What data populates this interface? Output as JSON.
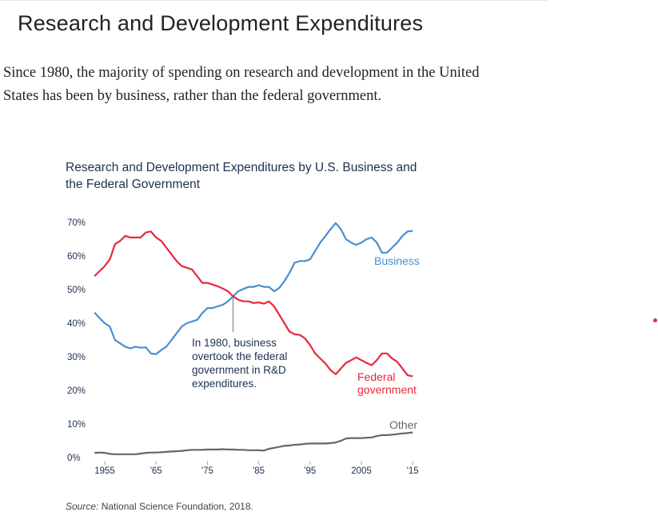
{
  "page": {
    "title": "Research and Development Expenditures",
    "intro": "Since 1980, the majority of spending on research and development in the United States has been by business, rather than the federal government."
  },
  "chart_data": {
    "type": "line",
    "title": "Research and Development Expenditures by U.S. Business and the Federal Government",
    "xlabel": "",
    "ylabel": "",
    "xlim": [
      1953,
      2015
    ],
    "ylim": [
      0,
      70
    ],
    "grid": false,
    "x_ticks": [
      1955,
      1965,
      1975,
      1985,
      1995,
      2005,
      2015
    ],
    "x_tick_labels": [
      "1955",
      "'65",
      "'75",
      "'85",
      "'95",
      "2005",
      "'15"
    ],
    "y_ticks": [
      0,
      10,
      20,
      30,
      40,
      50,
      60,
      70
    ],
    "y_tick_labels": [
      "0%",
      "10%",
      "20%",
      "30%",
      "40%",
      "50%",
      "60%",
      "70%"
    ],
    "x": [
      1953,
      1954,
      1955,
      1956,
      1957,
      1958,
      1959,
      1960,
      1961,
      1962,
      1963,
      1964,
      1965,
      1966,
      1967,
      1968,
      1969,
      1970,
      1971,
      1972,
      1973,
      1974,
      1975,
      1976,
      1977,
      1978,
      1979,
      1980,
      1981,
      1982,
      1983,
      1984,
      1985,
      1986,
      1987,
      1988,
      1989,
      1990,
      1991,
      1992,
      1993,
      1994,
      1995,
      1996,
      1997,
      1998,
      1999,
      2000,
      2001,
      2002,
      2003,
      2004,
      2005,
      2006,
      2007,
      2008,
      2009,
      2010,
      2011,
      2012,
      2013,
      2014,
      2015
    ],
    "series": [
      {
        "name": "Business",
        "color": "#4a8fcf",
        "values": [
          43.2,
          41.5,
          40,
          39,
          35,
          34,
          33,
          32.5,
          33,
          32.7,
          32.8,
          31,
          30.8,
          32,
          33,
          35,
          37,
          39,
          40,
          40.5,
          41,
          43,
          44.5,
          44.5,
          45,
          45.5,
          46.5,
          48,
          49.5,
          50.2,
          50.8,
          50.8,
          51.3,
          50.8,
          50.8,
          49.5,
          50.5,
          52.5,
          55,
          58,
          58.5,
          58.5,
          59,
          61.5,
          64,
          66,
          68,
          69.8,
          68,
          65,
          64,
          63.3,
          64,
          65,
          65.5,
          64,
          61,
          61,
          62.5,
          64,
          66,
          67.3,
          67.5
        ]
      },
      {
        "name": "Federal government",
        "color": "#e8283c",
        "values": [
          54,
          55.5,
          57,
          59,
          63.5,
          64.5,
          66,
          65.5,
          65.5,
          65.5,
          67,
          67.3,
          65.5,
          64.5,
          62.5,
          60.5,
          58.5,
          57,
          56.5,
          56,
          54,
          52,
          52,
          51.5,
          51,
          50.3,
          49.5,
          48,
          47,
          46.5,
          46.5,
          46,
          46.2,
          45.8,
          46.5,
          45,
          42.5,
          40,
          37.5,
          36.7,
          36.5,
          35.5,
          33.5,
          31,
          29.5,
          28,
          26,
          24.8,
          26.5,
          28.2,
          29,
          29.8,
          29,
          28.2,
          27.5,
          29,
          31,
          31,
          29.5,
          28.5,
          26.5,
          24.5,
          24.2
        ]
      },
      {
        "name": "Other",
        "color": "#666666",
        "values": [
          1.4,
          1.5,
          1.4,
          1.1,
          1,
          1,
          1,
          1,
          1,
          1.2,
          1.4,
          1.5,
          1.5,
          1.6,
          1.7,
          1.8,
          1.9,
          2,
          2.2,
          2.3,
          2.3,
          2.3,
          2.4,
          2.4,
          2.4,
          2.5,
          2.4,
          2.4,
          2.3,
          2.3,
          2.2,
          2.2,
          2.2,
          2.1,
          2.6,
          2.9,
          3.2,
          3.5,
          3.6,
          3.8,
          3.9,
          4.1,
          4.2,
          4.2,
          4.2,
          4.2,
          4.3,
          4.5,
          5,
          5.7,
          5.8,
          5.8,
          5.8,
          5.9,
          6,
          6.4,
          6.7,
          6.7,
          6.8,
          7,
          7.2,
          7.3,
          7.5
        ]
      }
    ],
    "annotation": {
      "year": 1980,
      "lines": [
        "In 1980, business",
        "overtook the federal",
        "government in R&D",
        "expenditures."
      ]
    },
    "series_labels": {
      "business": "Business",
      "federal": [
        "Federal",
        "government"
      ],
      "other": "Other"
    },
    "source_label": "Source:",
    "source_text": " National Science Foundation, 2018."
  }
}
